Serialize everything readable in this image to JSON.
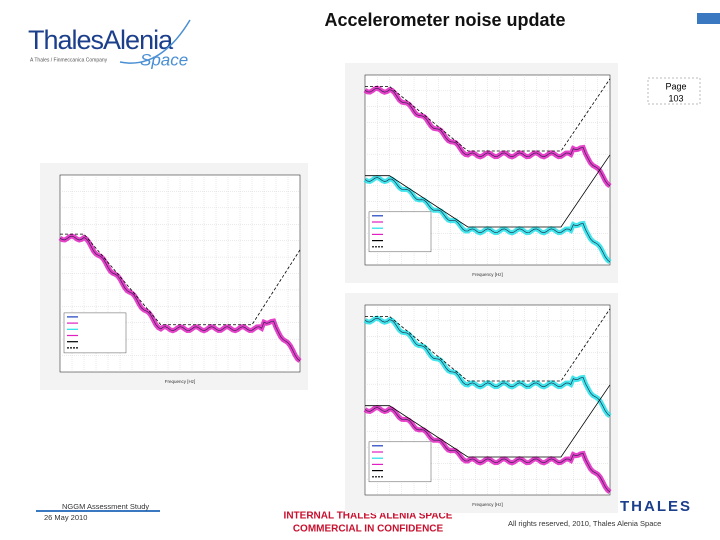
{
  "header": {
    "title": "Accelerometer noise update",
    "logo": {
      "name": "ThalesAlenia",
      "sub": "Space",
      "tagline": "A Thales / Finmeccanica Company"
    },
    "page": {
      "label": "Page",
      "number": "103"
    }
  },
  "plots": [
    {
      "xlabel": "Frequency [Hz]"
    },
    {
      "xlabel": "Frequency [Hz]"
    },
    {
      "xlabel": "Frequency [Hz]"
    }
  ],
  "footer": {
    "study": "NGGM Assessment Study",
    "date": "26 May 2010",
    "classification": [
      "INTERNAL THALES ALENIA SPACE",
      "COMMERCIAL IN CONFIDENCE"
    ],
    "rights": "All rights reserved, 2010, Thales Alenia Space",
    "brand": "THALES"
  }
}
